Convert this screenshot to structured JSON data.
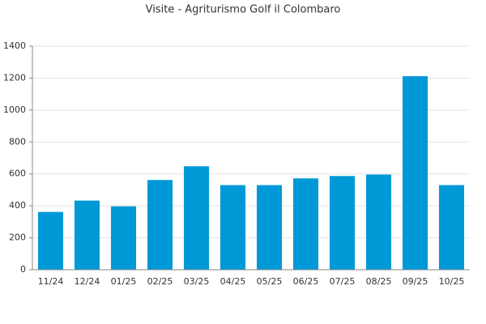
{
  "chart_data": {
    "type": "bar",
    "title": "Visite - Agriturismo Golf il Colombaro",
    "categories": [
      "11/24",
      "12/24",
      "01/25",
      "02/25",
      "03/25",
      "04/25",
      "05/25",
      "06/25",
      "07/25",
      "08/25",
      "09/25",
      "10/25"
    ],
    "values": [
      362,
      433,
      397,
      562,
      648,
      530,
      530,
      572,
      587,
      596,
      1212,
      530
    ],
    "color": "#0099d8",
    "ylim": [
      0,
      1400
    ],
    "yticks": [
      0,
      200,
      400,
      600,
      800,
      1000,
      1200,
      1400
    ],
    "grid": true
  }
}
